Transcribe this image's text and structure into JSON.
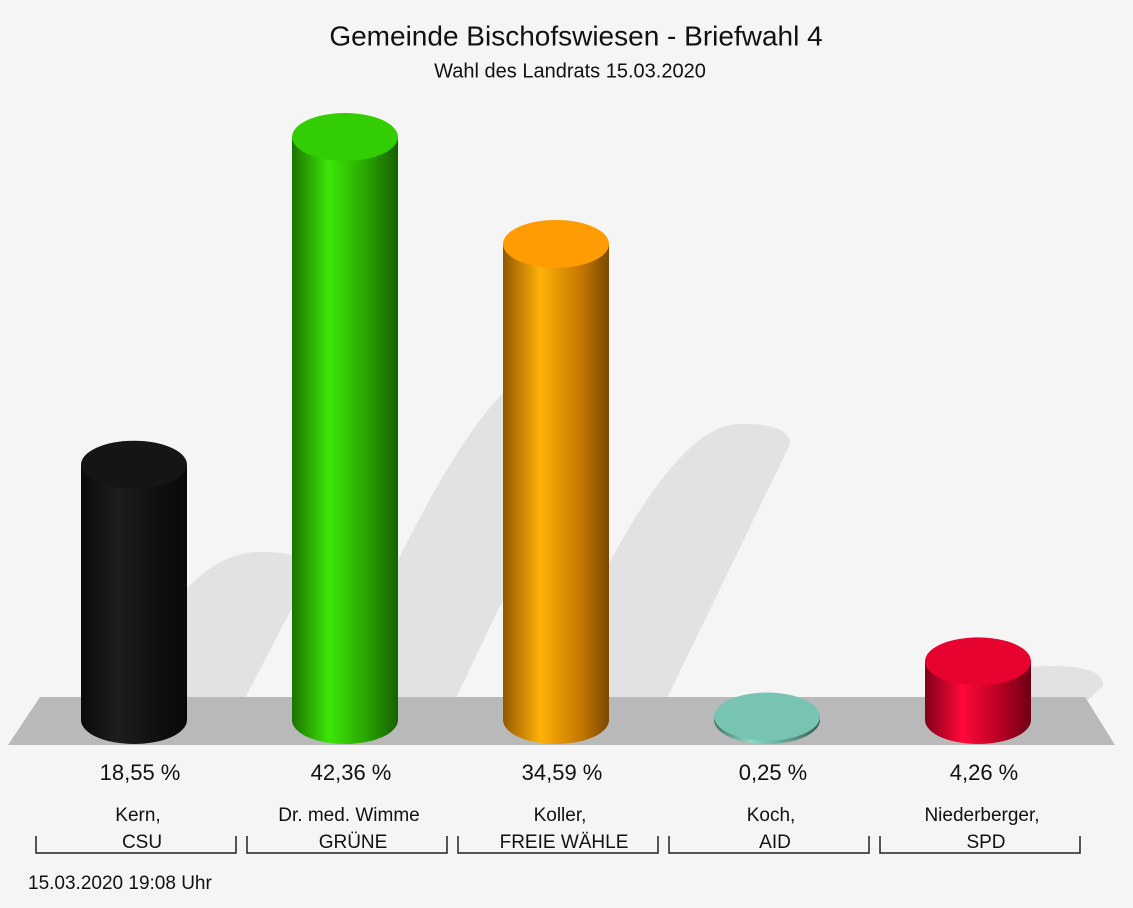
{
  "chart_data": {
    "type": "bar",
    "title": "Gemeinde Bischofswiesen - Briefwahl 4",
    "subtitle": "Wahl des Landrats 15.03.2020",
    "categories": [
      "Kern,",
      "Dr. med. Wimme",
      "Koller,",
      "Koch,",
      "Niederberger,"
    ],
    "parties": [
      "CSU",
      "GRÜNE",
      "FREIE WÄHLE",
      "AID",
      "SPD"
    ],
    "values": [
      18.55,
      42.36,
      34.59,
      0.25,
      4.26
    ],
    "value_labels": [
      "18,55 %",
      "42,36 %",
      "34,59 %",
      "0,25 %",
      "4,26 %"
    ],
    "colors": [
      "#111111",
      "#2ec000",
      "#f39200",
      "#6fb8a8",
      "#d9002a"
    ],
    "footer": "15.03.2020 19:08 Uhr"
  }
}
